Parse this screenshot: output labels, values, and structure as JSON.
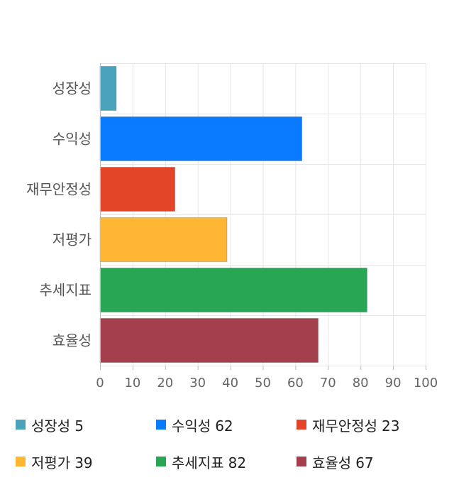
{
  "chart_data": {
    "type": "bar",
    "orientation": "horizontal",
    "categories": [
      "성장성",
      "수익성",
      "재무안정성",
      "저평가",
      "추세지표",
      "효율성"
    ],
    "values": [
      5,
      62,
      23,
      39,
      82,
      67
    ],
    "colors": [
      "#4ba3bb",
      "#0a7aff",
      "#e24527",
      "#ffb733",
      "#29a654",
      "#a4404e"
    ],
    "xlim": [
      0,
      100
    ],
    "xticks": [
      0,
      10,
      20,
      30,
      40,
      50,
      60,
      70,
      80,
      90,
      100
    ],
    "grid": true,
    "legend_position": "bottom"
  },
  "legend": [
    {
      "label": "성장성",
      "value": "5",
      "color": "#4ba3bb"
    },
    {
      "label": "수익성",
      "value": "62",
      "color": "#0a7aff"
    },
    {
      "label": "재무안정성",
      "value": "23",
      "color": "#e24527"
    },
    {
      "label": "저평가",
      "value": "39",
      "color": "#ffb733"
    },
    {
      "label": "추세지표",
      "value": "82",
      "color": "#29a654"
    },
    {
      "label": "효율성",
      "value": "67",
      "color": "#a4404e"
    }
  ]
}
